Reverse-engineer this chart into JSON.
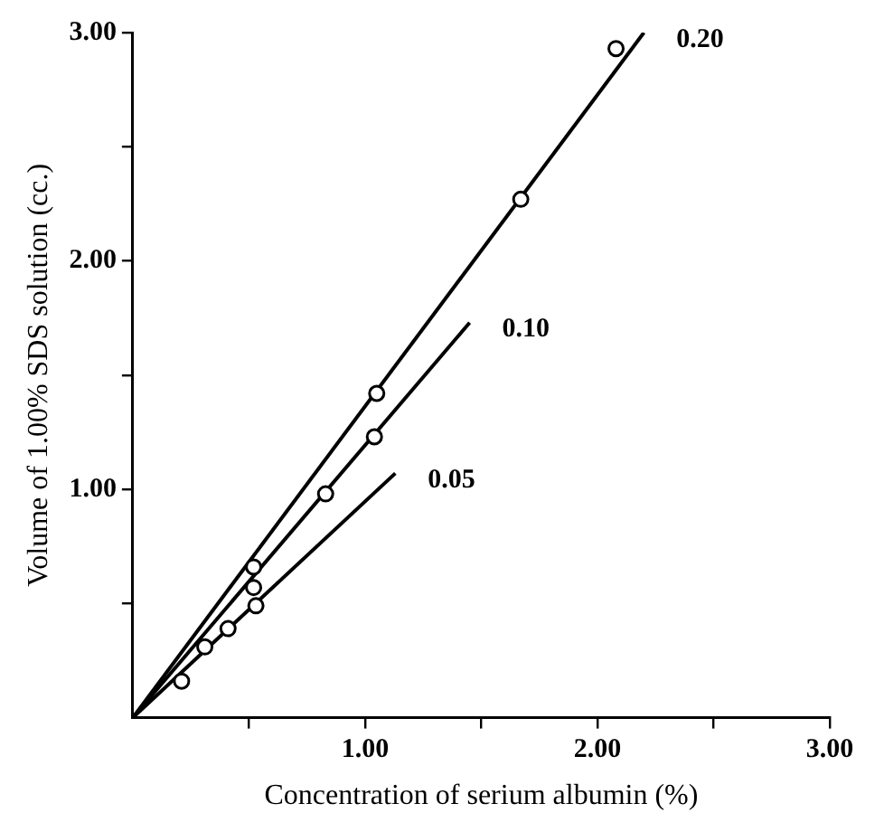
{
  "chart_data": {
    "type": "scatter",
    "xlabel": "Concentration of serium albumin (%)",
    "ylabel": "Volume of 1.00% SDS solution (cc.)",
    "xlim": [
      0,
      3
    ],
    "ylim": [
      0,
      3
    ],
    "xticks": [
      {
        "value": 0.5,
        "label": null
      },
      {
        "value": 1,
        "label": "1.00"
      },
      {
        "value": 1.5,
        "label": null
      },
      {
        "value": 2,
        "label": "2.00"
      },
      {
        "value": 2.5,
        "label": null
      },
      {
        "value": 3,
        "label": "3.00"
      }
    ],
    "yticks": [
      {
        "value": 0.5,
        "label": null
      },
      {
        "value": 1,
        "label": "1.00"
      },
      {
        "value": 1.5,
        "label": null
      },
      {
        "value": 2,
        "label": "2.00"
      },
      {
        "value": 2.5,
        "label": null
      },
      {
        "value": 3,
        "label": "3.00"
      }
    ],
    "grid": false,
    "legend": false,
    "series": [
      {
        "type": "line",
        "color": "#000000",
        "marker": "none",
        "x": [
          0,
          2.2
        ],
        "values": [
          0,
          3.0
        ]
      },
      {
        "type": "line",
        "color": "#000000",
        "marker": "none",
        "x": [
          0,
          1.45
        ],
        "values": [
          0,
          1.73
        ]
      },
      {
        "type": "line",
        "color": "#000000",
        "marker": "none",
        "x": [
          0,
          1.13
        ],
        "values": [
          0,
          1.07
        ]
      },
      {
        "type": "scatter",
        "color": "#000000",
        "marker": "circle",
        "x": [
          0.52,
          1.05,
          1.67,
          2.08
        ],
        "values": [
          0.66,
          1.42,
          2.27,
          2.93
        ]
      },
      {
        "type": "scatter",
        "color": "#000000",
        "marker": "circle",
        "x": [
          0.52,
          0.83,
          1.04
        ],
        "values": [
          0.57,
          0.98,
          1.23
        ]
      },
      {
        "type": "scatter",
        "color": "#000000",
        "marker": "circle",
        "x": [
          0.21,
          0.31,
          0.41,
          0.53
        ],
        "values": [
          0.16,
          0.31,
          0.39,
          0.49
        ]
      }
    ],
    "annotations": [
      {
        "text": "0.20",
        "x": 2.2,
        "y": 3.0
      },
      {
        "text": "0.10",
        "x": 1.45,
        "y": 1.73
      },
      {
        "text": "0.05",
        "x": 1.13,
        "y": 1.07
      }
    ]
  }
}
